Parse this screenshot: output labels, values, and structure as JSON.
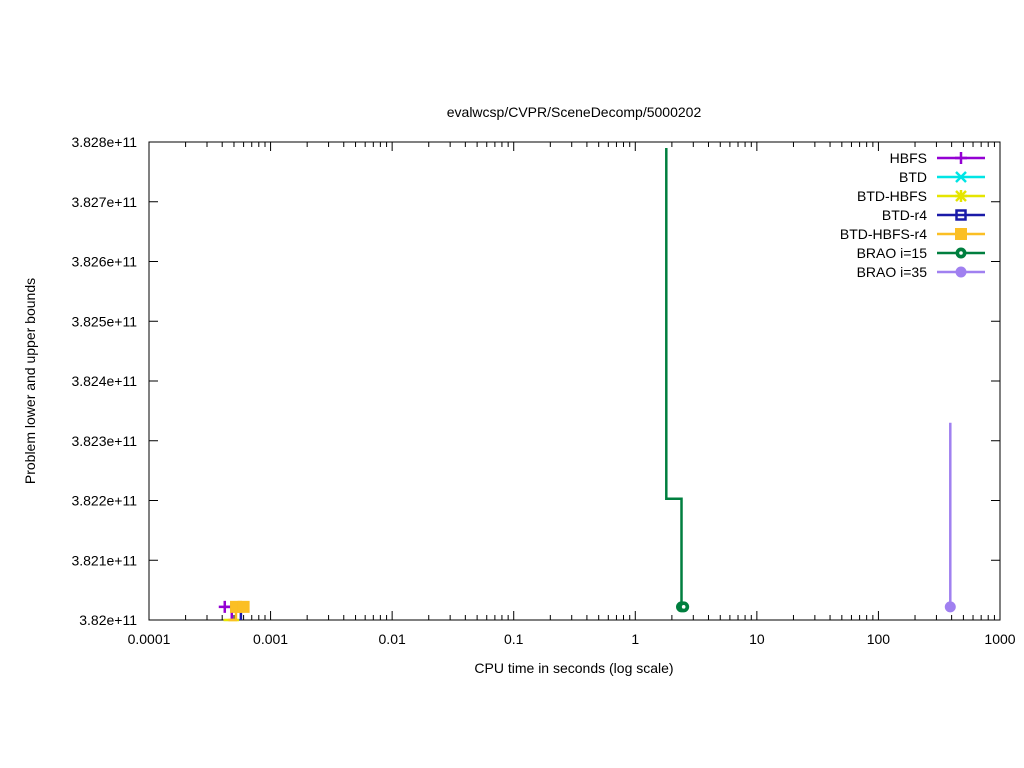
{
  "chart_data": {
    "type": "line",
    "title": "evalwcsp/CVPR/SceneDecomp/5000202",
    "xlabel": "CPU time in seconds (log scale)",
    "ylabel": "Problem lower and upper bounds",
    "xscale": "log",
    "xlim": [
      0.0001,
      1000
    ],
    "ylim": [
      382000000000,
      382800000000
    ],
    "x_ticks": [
      {
        "value": 0.0001,
        "label": "0.0001"
      },
      {
        "value": 0.001,
        "label": "0.001"
      },
      {
        "value": 0.01,
        "label": "0.01"
      },
      {
        "value": 0.1,
        "label": "0.1"
      },
      {
        "value": 1,
        "label": "1"
      },
      {
        "value": 10,
        "label": "10"
      },
      {
        "value": 100,
        "label": "100"
      },
      {
        "value": 1000,
        "label": "1000"
      }
    ],
    "y_ticks": [
      {
        "value": 382000000000,
        "label": "3.82e+11"
      },
      {
        "value": 382100000000,
        "label": "3.821e+11"
      },
      {
        "value": 382200000000,
        "label": "3.822e+11"
      },
      {
        "value": 382300000000,
        "label": "3.823e+11"
      },
      {
        "value": 382400000000,
        "label": "3.824e+11"
      },
      {
        "value": 382500000000,
        "label": "3.825e+11"
      },
      {
        "value": 382600000000,
        "label": "3.826e+11"
      },
      {
        "value": 382700000000,
        "label": "3.827e+11"
      },
      {
        "value": 382800000000,
        "label": "3.828e+11"
      }
    ],
    "grid": false,
    "legend_position": "top-right",
    "series": [
      {
        "name": "HBFS",
        "color": "#9400d3",
        "marker": "plus",
        "points": [
          [
            0.00042,
            382022000000
          ],
          [
            0.00048,
            382022000000
          ],
          [
            0.00048,
            382000000000
          ]
        ],
        "markers": [
          [
            0.00042,
            382022000000
          ]
        ]
      },
      {
        "name": "BTD",
        "color": "#00e5e5",
        "marker": "cross",
        "points": [],
        "markers": []
      },
      {
        "name": "BTD-HBFS",
        "color": "#e5e500",
        "marker": "star",
        "points": [
          [
            0.00041,
            382000000000
          ],
          [
            0.00055,
            382000000000
          ]
        ],
        "markers": []
      },
      {
        "name": "BTD-r4",
        "color": "#1a1aa8",
        "marker": "square-open",
        "points": [
          [
            0.00052,
            382022000000
          ],
          [
            0.00057,
            382022000000
          ],
          [
            0.00057,
            382000000000
          ]
        ],
        "markers": [
          [
            0.00052,
            382022000000
          ]
        ]
      },
      {
        "name": "BTD-HBFS-r4",
        "color": "#fbbf24",
        "marker": "square-filled",
        "points": [
          [
            0.00045,
            382000000000
          ],
          [
            0.00052,
            382000000000
          ],
          [
            0.00052,
            382022000000
          ],
          [
            0.0006,
            382022000000
          ]
        ],
        "markers": [
          [
            0.00052,
            382022000000
          ],
          [
            0.0006,
            382022000000
          ]
        ]
      },
      {
        "name": "BRAO i=15",
        "color": "#007f3f",
        "marker": "circle-dot",
        "points": [
          [
            1.8,
            382790000000
          ],
          [
            1.8,
            382203000000
          ],
          [
            2.4,
            382203000000
          ],
          [
            2.4,
            382022000000
          ],
          [
            2.5,
            382022000000
          ]
        ],
        "markers": [
          [
            2.4,
            382022000000
          ],
          [
            2.5,
            382022000000
          ]
        ]
      },
      {
        "name": "BRAO i=35",
        "color": "#a080f0",
        "marker": "circle-filled",
        "points": [
          [
            390,
            382330000000
          ],
          [
            390,
            382022000000
          ]
        ],
        "markers": [
          [
            390,
            382022000000
          ]
        ]
      }
    ]
  }
}
